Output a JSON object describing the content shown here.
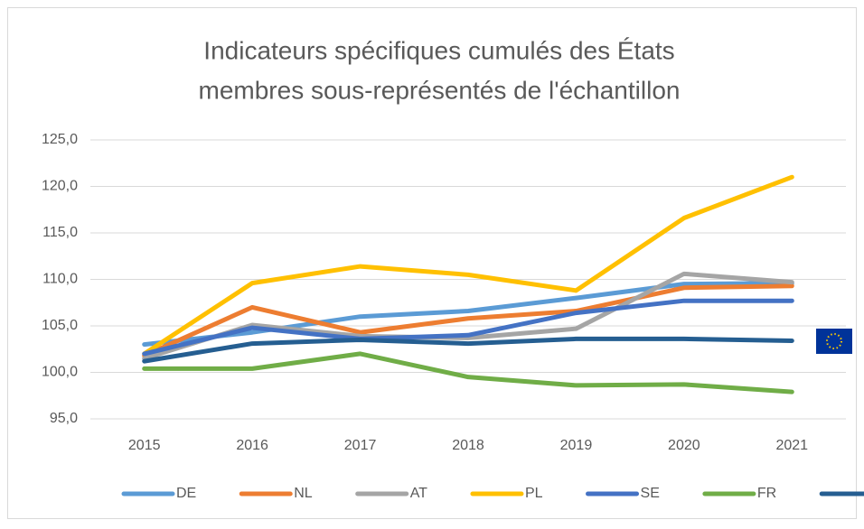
{
  "chart_data": {
    "type": "line",
    "title": [
      "Indicateurs spécifiques cumulés des États",
      "membres sous-représentés de l'échantillon"
    ],
    "categories": [
      "2015",
      "2016",
      "2017",
      "2018",
      "2019",
      "2020",
      "2021"
    ],
    "series": [
      {
        "name": "DE",
        "color": "#5b9bd5",
        "values": [
          103.0,
          104.3,
          106.0,
          106.6,
          108.0,
          109.5,
          109.6
        ]
      },
      {
        "name": "NL",
        "color": "#ed7d31",
        "values": [
          101.8,
          107.0,
          104.3,
          105.8,
          106.6,
          109.1,
          109.3
        ]
      },
      {
        "name": "AT",
        "color": "#a5a5a5",
        "values": [
          101.5,
          105.1,
          103.9,
          103.7,
          104.7,
          110.6,
          109.7
        ]
      },
      {
        "name": "PL",
        "color": "#ffc000",
        "values": [
          102.0,
          109.6,
          111.4,
          110.5,
          108.8,
          116.6,
          121.0
        ]
      },
      {
        "name": "SE",
        "color": "#4472c4",
        "values": [
          102.0,
          104.8,
          103.6,
          104.0,
          106.4,
          107.7,
          107.7
        ]
      },
      {
        "name": "FR",
        "color": "#70ad47",
        "values": [
          100.4,
          100.4,
          102.0,
          99.5,
          98.6,
          98.7,
          97.9
        ]
      },
      {
        "name": "EU",
        "color": "#255e91",
        "values": [
          101.2,
          103.1,
          103.5,
          103.1,
          103.6,
          103.6,
          103.4
        ]
      }
    ],
    "ylim": [
      95,
      125
    ],
    "yticks": [
      {
        "value": 95,
        "label": "95,0"
      },
      {
        "value": 100,
        "label": "100,0"
      },
      {
        "value": 105,
        "label": "105,0"
      },
      {
        "value": 110,
        "label": "110,0"
      },
      {
        "value": 115,
        "label": "115,0"
      },
      {
        "value": 120,
        "label": "120,0"
      },
      {
        "value": 125,
        "label": "125,0"
      }
    ],
    "grid": true,
    "legend": "bottom"
  }
}
